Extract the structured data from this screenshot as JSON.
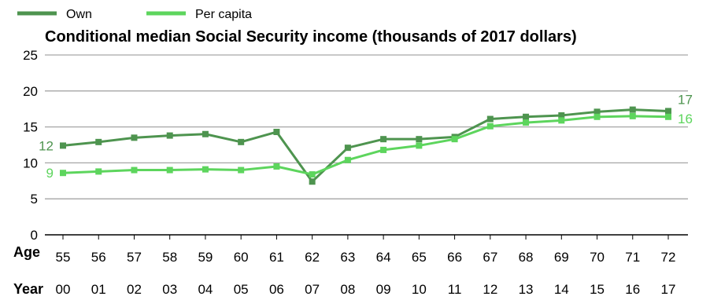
{
  "chart_data": {
    "type": "line",
    "title": "Conditional median Social Security income (thousands of 2017 dollars)",
    "xlabel": "Age",
    "x2label": "Year",
    "ylim": [
      0,
      25
    ],
    "yticks": [
      "0",
      "5",
      "10",
      "15",
      "20",
      "25"
    ],
    "grid": true,
    "legend_position": "top-left",
    "categories": [
      "55",
      "56",
      "57",
      "58",
      "59",
      "60",
      "61",
      "62",
      "63",
      "64",
      "65",
      "66",
      "67",
      "68",
      "69",
      "70",
      "71",
      "72"
    ],
    "years": [
      "00",
      "01",
      "02",
      "03",
      "04",
      "05",
      "06",
      "07",
      "08",
      "09",
      "10",
      "11",
      "12",
      "13",
      "14",
      "15",
      "16",
      "17"
    ],
    "series": [
      {
        "name": "Own",
        "color": "#4e944f",
        "values": [
          12.4,
          12.9,
          13.5,
          13.8,
          14.0,
          12.9,
          14.3,
          7.4,
          12.1,
          13.3,
          13.3,
          13.6,
          16.1,
          16.4,
          16.6,
          17.1,
          17.4,
          17.2
        ],
        "start_label": "12",
        "end_label": "17"
      },
      {
        "name": "Per capita",
        "color": "#5dd55d",
        "values": [
          8.6,
          8.8,
          9.0,
          9.0,
          9.1,
          9.0,
          9.5,
          8.4,
          10.4,
          11.8,
          12.4,
          13.3,
          15.1,
          15.6,
          15.9,
          16.4,
          16.5,
          16.4
        ],
        "start_label": "9",
        "end_label": "16"
      }
    ]
  }
}
